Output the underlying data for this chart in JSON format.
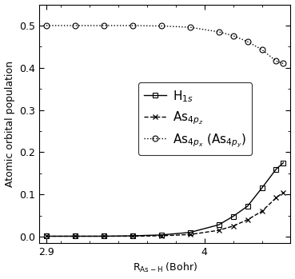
{
  "title": "",
  "xlabel": "R$_{As-H}$ (Bohr)",
  "ylabel": "Atomic orbital population",
  "xlim": [
    2.85,
    4.6
  ],
  "ylim": [
    -0.015,
    0.55
  ],
  "yticks": [
    0.0,
    0.1,
    0.2,
    0.3,
    0.4,
    0.5
  ],
  "xticks": [
    2.9,
    4.0
  ],
  "background_color": "#ffffff",
  "x_H1s": [
    2.9,
    3.1,
    3.3,
    3.5,
    3.7,
    3.9,
    4.1,
    4.2,
    4.3,
    4.4,
    4.5,
    4.55
  ],
  "y_H1s": [
    0.001,
    0.001,
    0.001,
    0.002,
    0.004,
    0.01,
    0.028,
    0.048,
    0.072,
    0.115,
    0.16,
    0.175
  ],
  "x_As4pz": [
    2.9,
    3.1,
    3.3,
    3.5,
    3.7,
    3.9,
    4.1,
    4.2,
    4.3,
    4.4,
    4.5,
    4.55
  ],
  "y_As4pz": [
    0.001,
    0.001,
    0.001,
    0.001,
    0.002,
    0.005,
    0.015,
    0.025,
    0.04,
    0.06,
    0.092,
    0.105
  ],
  "x_As4px": [
    2.9,
    3.1,
    3.3,
    3.5,
    3.7,
    3.9,
    4.1,
    4.2,
    4.3,
    4.4,
    4.5,
    4.55
  ],
  "y_As4px": [
    0.5,
    0.5,
    0.5,
    0.5,
    0.499,
    0.496,
    0.485,
    0.476,
    0.462,
    0.443,
    0.416,
    0.41
  ],
  "color_H1s": "#000000",
  "color_As4pz": "#000000",
  "color_As4px": "#000000",
  "marker_H1s": "s",
  "marker_As4pz": "x",
  "marker_As4px": "o",
  "line_H1s": "-",
  "line_As4pz": "--",
  "line_As4px": ":",
  "markersize": 4,
  "legend_fontsize": 11
}
